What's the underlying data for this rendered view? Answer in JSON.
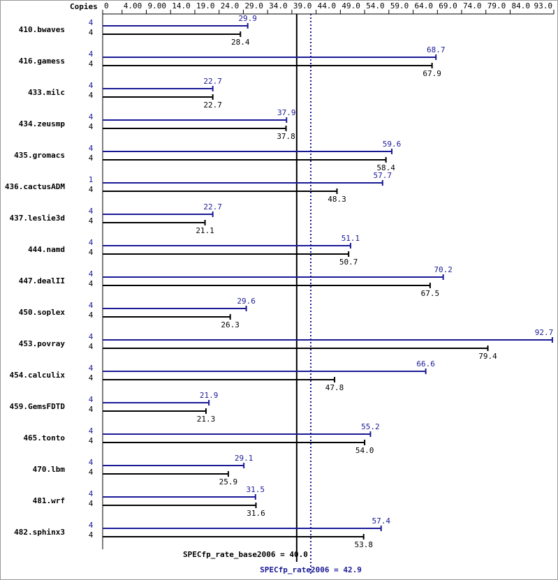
{
  "chart_data": {
    "type": "bar",
    "orientation": "horizontal",
    "copies_label": "Copies",
    "categories": [
      "410.bwaves",
      "416.gamess",
      "433.milc",
      "434.zeusmp",
      "435.gromacs",
      "436.cactusADM",
      "437.leslie3d",
      "444.namd",
      "447.dealII",
      "450.soplex",
      "453.povray",
      "454.calculix",
      "459.GemsFDTD",
      "465.tonto",
      "470.lbm",
      "481.wrf",
      "482.sphinx3"
    ],
    "series": [
      {
        "color": "#191996",
        "copies": [
          4,
          4,
          4,
          4,
          4,
          1,
          4,
          4,
          4,
          4,
          4,
          4,
          4,
          4,
          4,
          4,
          4
        ],
        "values": [
          29.9,
          68.7,
          22.7,
          37.9,
          59.6,
          57.7,
          22.7,
          51.1,
          70.2,
          29.6,
          92.7,
          66.6,
          21.9,
          55.2,
          29.1,
          31.5,
          57.4
        ],
        "value_labels": [
          "29.9",
          "68.7",
          "22.7",
          "37.9",
          "59.6",
          "57.7",
          "22.7",
          "51.1",
          "70.2",
          "29.6",
          "92.7",
          "66.6",
          "21.9",
          "55.2",
          "29.1",
          "31.5",
          "57.4"
        ]
      },
      {
        "color": "#000000",
        "copies": [
          4,
          4,
          4,
          4,
          4,
          4,
          4,
          4,
          4,
          4,
          4,
          4,
          4,
          4,
          4,
          4,
          4
        ],
        "values": [
          28.4,
          67.9,
          22.7,
          37.8,
          58.4,
          48.3,
          21.1,
          50.7,
          67.5,
          26.3,
          79.4,
          47.8,
          21.3,
          54.0,
          25.9,
          31.6,
          53.8
        ],
        "value_labels": [
          "28.4",
          "67.9",
          "22.7",
          "37.8",
          "58.4",
          "48.3",
          "21.1",
          "50.7",
          "67.5",
          "26.3",
          "79.4",
          "47.8",
          "21.3",
          "54.0",
          "25.9",
          "31.6",
          "53.8"
        ]
      }
    ],
    "xlim": [
      0,
      93
    ],
    "xticks": [
      0,
      {
        "value": 4,
        "label": "4.00"
      },
      {
        "value": 9,
        "label": "9.00"
      },
      {
        "value": 14,
        "label": "14.0"
      },
      {
        "value": 19,
        "label": "19.0"
      },
      {
        "value": 24,
        "label": "24.0"
      },
      {
        "value": 29,
        "label": "29.0"
      },
      {
        "value": 34,
        "label": "34.0"
      },
      {
        "value": 39,
        "label": "39.0"
      },
      {
        "value": 44,
        "label": "44.0"
      },
      {
        "value": 49,
        "label": "49.0"
      },
      {
        "value": 54,
        "label": "54.0"
      },
      {
        "value": 59,
        "label": "59.0"
      },
      {
        "value": 64,
        "label": "64.0"
      },
      {
        "value": 69,
        "label": "69.0"
      },
      {
        "value": 74,
        "label": "74.0"
      },
      {
        "value": 79,
        "label": "79.0"
      },
      {
        "value": 84,
        "label": "84.0"
      },
      {
        "value": 93,
        "label": "93.0"
      }
    ],
    "reference_lines": [
      {
        "value": 40,
        "label": "SPECfp_rate_base2006 = 40.0",
        "color": "#000000",
        "style": "solid"
      },
      {
        "value": 42.9,
        "label": "SPECfp_rate2006 = 42.9",
        "color": "#191996",
        "style": "dotted"
      }
    ]
  }
}
